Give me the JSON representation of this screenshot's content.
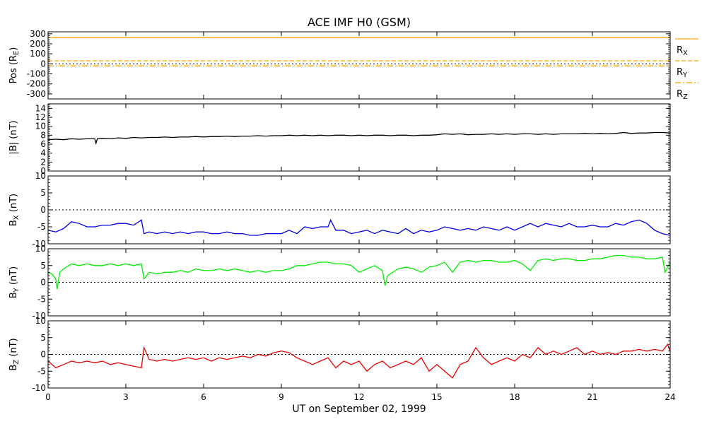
{
  "chart_data": {
    "type": "line",
    "title": "ACE IMF H0 (GSM)",
    "xlabel": "UT on September 02, 1999",
    "xlim": [
      0,
      24
    ],
    "xticks": [
      0,
      3,
      6,
      9,
      12,
      15,
      18,
      21,
      24
    ],
    "xtick_labels": [
      "0",
      "3",
      "6",
      "9",
      "12",
      "15",
      "18",
      "21",
      "24"
    ],
    "colors": {
      "orange": "#ffa500",
      "black": "#000000",
      "blue": "#0000e6",
      "green": "#00ee00",
      "red": "#e60000"
    },
    "panels": [
      {
        "key": "pos",
        "ylabel": "Pos (R",
        "ylabel_sub": "E",
        "ylabel_end": ")",
        "ylim": [
          -350,
          320
        ],
        "yticks": [
          -300,
          -200,
          -100,
          0,
          100,
          200,
          300
        ],
        "ytick_labels": [
          "-300",
          "-200",
          "-100",
          "0",
          "100",
          "200",
          "300"
        ],
        "zero_line": true,
        "legend": [
          {
            "main": "R",
            "sub": "X",
            "color": "#ffa500",
            "dash": "none"
          },
          {
            "main": "R",
            "sub": "Y",
            "color": "#ffa500",
            "dash": "6,3"
          },
          {
            "main": "R",
            "sub": "Z",
            "color": "#ffa500",
            "dash": "8,3,2,3"
          }
        ],
        "series": [
          {
            "name": "RX",
            "color": "#ffa500",
            "dash": "none",
            "x": [
              0,
              24
            ],
            "y": [
              262,
              262
            ]
          },
          {
            "name": "RY",
            "color": "#ffa500",
            "dash": "6,3",
            "x": [
              0,
              24
            ],
            "y": [
              30,
              30
            ]
          },
          {
            "name": "RZ",
            "color": "#ffa500",
            "dash": "8,3,2,3",
            "x": [
              0,
              24
            ],
            "y": [
              -20,
              -20
            ]
          }
        ]
      },
      {
        "key": "bmag",
        "ylabel": "|B| (nT)",
        "ylim": [
          0,
          15
        ],
        "yticks": [
          0,
          2,
          4,
          6,
          8,
          10,
          12,
          14
        ],
        "ytick_labels": [
          "0",
          "2",
          "4",
          "6",
          "8",
          "10",
          "12",
          "14"
        ],
        "zero_line": false,
        "series": [
          {
            "name": "|B|",
            "color": "#000000",
            "dash": "none",
            "x": [
              0,
              0.3,
              0.6,
              0.9,
              1.2,
              1.5,
              1.8,
              1.85,
              1.9,
              2.1,
              2.4,
              2.7,
              3.0,
              3.3,
              3.6,
              3.9,
              4.2,
              4.5,
              4.8,
              5.1,
              5.4,
              5.7,
              6.0,
              6.3,
              6.6,
              6.9,
              7.2,
              7.5,
              7.8,
              8.1,
              8.4,
              8.7,
              9.0,
              9.3,
              9.6,
              9.9,
              10.2,
              10.5,
              10.8,
              11.1,
              11.4,
              11.7,
              12.0,
              12.3,
              12.6,
              12.9,
              13.2,
              13.5,
              13.8,
              14.1,
              14.4,
              14.7,
              15.0,
              15.3,
              15.6,
              15.9,
              16.2,
              16.5,
              16.8,
              17.1,
              17.4,
              17.7,
              18.0,
              18.3,
              18.6,
              18.9,
              19.2,
              19.5,
              19.8,
              20.1,
              20.4,
              20.7,
              21.0,
              21.3,
              21.6,
              21.9,
              22.2,
              22.5,
              22.8,
              23.1,
              23.4,
              23.7,
              24.0
            ],
            "y": [
              7.0,
              7.1,
              7.0,
              7.2,
              7.1,
              7.2,
              7.2,
              6.2,
              7.2,
              7.3,
              7.2,
              7.4,
              7.3,
              7.5,
              7.4,
              7.5,
              7.5,
              7.6,
              7.5,
              7.6,
              7.6,
              7.7,
              7.6,
              7.7,
              7.7,
              7.8,
              7.7,
              7.8,
              7.8,
              7.9,
              7.8,
              7.9,
              7.9,
              8.0,
              7.9,
              8.0,
              7.9,
              8.0,
              7.9,
              8.0,
              8.0,
              7.9,
              8.0,
              7.9,
              8.0,
              8.0,
              7.9,
              8.0,
              8.0,
              7.9,
              8.0,
              8.0,
              8.1,
              8.3,
              8.2,
              8.3,
              8.1,
              8.2,
              8.2,
              8.3,
              8.2,
              8.3,
              8.2,
              8.3,
              8.3,
              8.2,
              8.3,
              8.2,
              8.3,
              8.3,
              8.3,
              8.4,
              8.3,
              8.4,
              8.3,
              8.4,
              8.6,
              8.4,
              8.5,
              8.5,
              8.6,
              8.6,
              8.5
            ]
          }
        ]
      },
      {
        "key": "bx",
        "ylabel": "B",
        "ylabel_sub": "X",
        "ylabel_end": " (nT)",
        "ylim": [
          -10,
          10
        ],
        "yticks": [
          -10,
          -5,
          0,
          5,
          10
        ],
        "ytick_labels": [
          "-10",
          "-5",
          "0",
          "5",
          "10"
        ],
        "zero_line": true,
        "series": [
          {
            "name": "Bx",
            "color": "#0000e6",
            "dash": "none",
            "x": [
              0,
              0.3,
              0.6,
              0.9,
              1.2,
              1.5,
              1.8,
              2.1,
              2.4,
              2.7,
              3.0,
              3.3,
              3.6,
              3.7,
              3.9,
              4.2,
              4.5,
              4.8,
              5.1,
              5.4,
              5.7,
              6.0,
              6.3,
              6.6,
              6.9,
              7.2,
              7.5,
              7.8,
              8.1,
              8.4,
              8.7,
              9.0,
              9.3,
              9.6,
              9.9,
              10.2,
              10.5,
              10.8,
              10.9,
              11.1,
              11.4,
              11.7,
              12.0,
              12.3,
              12.6,
              12.9,
              13.2,
              13.5,
              13.8,
              14.1,
              14.4,
              14.7,
              15.0,
              15.3,
              15.6,
              15.9,
              16.2,
              16.5,
              16.8,
              17.1,
              17.4,
              17.7,
              18.0,
              18.3,
              18.6,
              18.9,
              19.2,
              19.5,
              19.8,
              20.1,
              20.4,
              20.7,
              21.0,
              21.3,
              21.6,
              21.9,
              22.2,
              22.5,
              22.8,
              23.1,
              23.4,
              23.7,
              24.0
            ],
            "y": [
              -6.0,
              -6.5,
              -5.5,
              -3.5,
              -4.0,
              -5.0,
              -5.0,
              -4.5,
              -4.5,
              -4.0,
              -4.0,
              -4.5,
              -3.0,
              -7.0,
              -6.5,
              -7.0,
              -6.5,
              -7.0,
              -6.5,
              -7.0,
              -6.5,
              -6.5,
              -7.0,
              -7.0,
              -6.5,
              -7.0,
              -7.0,
              -7.5,
              -7.5,
              -7.0,
              -7.0,
              -7.0,
              -6.0,
              -7.0,
              -5.0,
              -5.5,
              -5.0,
              -5.0,
              -3.0,
              -6.0,
              -6.0,
              -7.0,
              -6.5,
              -6.0,
              -7.0,
              -6.0,
              -6.5,
              -7.0,
              -5.5,
              -7.0,
              -6.0,
              -6.5,
              -6.0,
              -5.0,
              -5.5,
              -6.0,
              -5.5,
              -6.0,
              -5.0,
              -5.5,
              -6.0,
              -5.0,
              -6.0,
              -5.0,
              -4.0,
              -5.0,
              -4.0,
              -4.5,
              -5.0,
              -4.0,
              -5.0,
              -5.0,
              -4.5,
              -5.0,
              -5.0,
              -4.0,
              -4.5,
              -3.5,
              -3.0,
              -4.0,
              -6.0,
              -7.0,
              -7.5
            ]
          }
        ]
      },
      {
        "key": "by",
        "ylabel": "B",
        "ylabel_sub": "Y",
        "ylabel_end": " (nT)",
        "ylim": [
          -10,
          10
        ],
        "yticks": [
          -10,
          -5,
          0,
          5,
          10
        ],
        "ytick_labels": [
          "-10",
          "-5",
          "0",
          "5",
          "10"
        ],
        "zero_line": true,
        "series": [
          {
            "name": "By",
            "color": "#00ee00",
            "dash": "none",
            "x": [
              0,
              0.15,
              0.3,
              0.35,
              0.45,
              0.6,
              0.9,
              1.2,
              1.5,
              1.8,
              2.1,
              2.4,
              2.7,
              3.0,
              3.3,
              3.6,
              3.7,
              3.9,
              4.2,
              4.5,
              4.8,
              5.1,
              5.4,
              5.7,
              6.0,
              6.3,
              6.6,
              6.9,
              7.2,
              7.5,
              7.8,
              8.1,
              8.4,
              8.7,
              9.0,
              9.3,
              9.6,
              9.9,
              10.2,
              10.5,
              10.8,
              11.1,
              11.4,
              11.7,
              12.0,
              12.3,
              12.6,
              12.9,
              13.0,
              13.1,
              13.3,
              13.5,
              13.8,
              14.1,
              14.4,
              14.7,
              15.0,
              15.3,
              15.6,
              15.9,
              16.2,
              16.5,
              16.8,
              17.1,
              17.4,
              17.7,
              18.0,
              18.3,
              18.6,
              18.9,
              19.2,
              19.5,
              19.8,
              20.1,
              20.4,
              20.7,
              21.0,
              21.3,
              21.6,
              21.9,
              22.2,
              22.5,
              22.8,
              23.1,
              23.4,
              23.7,
              23.8,
              24.0
            ],
            "y": [
              3.0,
              2.5,
              1.0,
              -2.0,
              3.0,
              4.0,
              5.5,
              5.0,
              5.5,
              5.0,
              5.0,
              5.5,
              5.0,
              5.5,
              5.0,
              5.5,
              1.0,
              3.0,
              2.5,
              3.0,
              3.0,
              3.5,
              3.0,
              4.0,
              3.5,
              3.5,
              4.0,
              3.5,
              4.0,
              3.5,
              3.0,
              3.5,
              3.0,
              3.5,
              3.5,
              4.0,
              5.0,
              5.0,
              5.5,
              6.0,
              6.0,
              5.5,
              5.5,
              5.0,
              3.0,
              4.0,
              5.0,
              3.5,
              -1.0,
              2.0,
              3.0,
              4.0,
              4.5,
              4.0,
              3.0,
              4.5,
              5.0,
              6.0,
              3.0,
              6.0,
              6.5,
              6.0,
              6.5,
              6.5,
              6.0,
              6.0,
              6.5,
              5.5,
              3.5,
              6.5,
              7.0,
              6.5,
              7.0,
              7.0,
              6.5,
              6.5,
              7.0,
              7.0,
              7.5,
              8.0,
              8.0,
              7.5,
              7.5,
              7.0,
              7.0,
              7.5,
              3.0,
              6.0
            ]
          }
        ]
      },
      {
        "key": "bz",
        "ylabel": "B",
        "ylabel_sub": "Z",
        "ylabel_end": " (nT)",
        "ylim": [
          -10,
          10
        ],
        "yticks": [
          -10,
          -5,
          0,
          5,
          10
        ],
        "ytick_labels": [
          "-10",
          "-5",
          "0",
          "5",
          "10"
        ],
        "zero_line": true,
        "series": [
          {
            "name": "Bz",
            "color": "#e60000",
            "dash": "none",
            "x": [
              0,
              0.3,
              0.6,
              0.9,
              1.2,
              1.5,
              1.8,
              2.1,
              2.4,
              2.7,
              3.0,
              3.3,
              3.6,
              3.7,
              3.9,
              4.2,
              4.5,
              4.8,
              5.1,
              5.4,
              5.7,
              6.0,
              6.3,
              6.6,
              6.9,
              7.2,
              7.5,
              7.8,
              8.1,
              8.4,
              8.7,
              9.0,
              9.3,
              9.6,
              9.9,
              10.2,
              10.5,
              10.8,
              11.1,
              11.4,
              11.7,
              12.0,
              12.3,
              12.6,
              12.9,
              13.2,
              13.5,
              13.8,
              14.1,
              14.4,
              14.7,
              15.0,
              15.3,
              15.6,
              15.9,
              16.2,
              16.5,
              16.8,
              17.1,
              17.4,
              17.7,
              18.0,
              18.3,
              18.6,
              18.9,
              19.2,
              19.5,
              19.8,
              20.1,
              20.4,
              20.7,
              21.0,
              21.3,
              21.6,
              21.9,
              22.2,
              22.5,
              22.8,
              23.1,
              23.4,
              23.7,
              23.9,
              24.0
            ],
            "y": [
              -2.0,
              -4.0,
              -3.0,
              -2.0,
              -2.5,
              -2.0,
              -2.5,
              -2.0,
              -3.0,
              -2.5,
              -3.0,
              -3.5,
              -4.0,
              2.0,
              -1.5,
              -2.0,
              -1.5,
              -2.0,
              -1.5,
              -1.0,
              -1.5,
              -1.0,
              -2.0,
              -1.0,
              -1.5,
              -1.0,
              -0.5,
              -1.0,
              0.0,
              -0.5,
              0.5,
              1.0,
              0.5,
              -1.0,
              -2.0,
              -3.0,
              -2.0,
              -1.0,
              -4.0,
              -2.0,
              -3.0,
              -2.0,
              -5.0,
              -3.0,
              -2.0,
              -4.0,
              -3.0,
              -2.0,
              -3.0,
              -1.0,
              -5.0,
              -3.0,
              -5.0,
              -7.0,
              -3.0,
              -2.0,
              2.0,
              -1.0,
              -3.0,
              -2.0,
              -1.0,
              -2.0,
              0.0,
              -1.0,
              2.0,
              0.0,
              1.0,
              0.0,
              1.0,
              2.0,
              0.0,
              1.0,
              0.0,
              0.5,
              0.0,
              1.0,
              1.0,
              1.5,
              1.0,
              1.5,
              1.0,
              3.0,
              1.0
            ]
          }
        ]
      }
    ]
  }
}
